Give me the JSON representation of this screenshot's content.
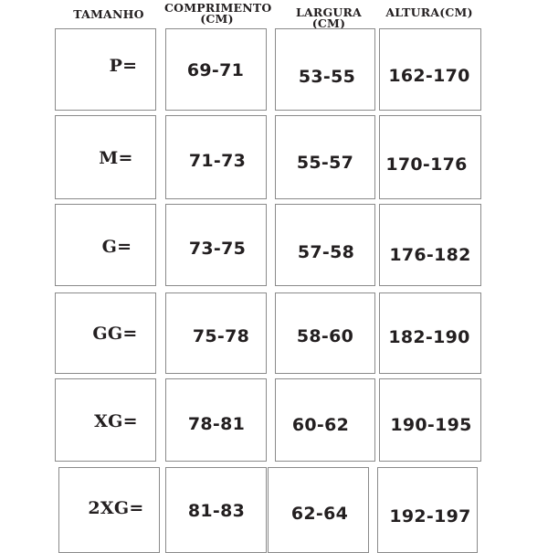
{
  "headers": [
    "TAMANHO",
    "COMPRIMENTO (CM)",
    "LARGURA (CM)",
    "ALTURA(CM)"
  ],
  "rows": [
    {
      "size": "P=",
      "comprimento": "69-71",
      "largura": "53-55",
      "altura": "162-170"
    },
    {
      "size": "M=",
      "comprimento": "71-73",
      "largura": "55-57",
      "altura": "170-176"
    },
    {
      "size": "G=",
      "comprimento": "73-75",
      "largura": "57-58",
      "altura": "176-182"
    },
    {
      "size": "GG=",
      "comprimento": "75-78",
      "largura": "58-60",
      "altura": "182-190"
    },
    {
      "size": "XG=",
      "comprimento": "78-81",
      "largura": "60-62",
      "altura": "190-195"
    },
    {
      "size": "2XG=",
      "comprimento": "81-83",
      "largura": "62-64",
      "altura": "192-197"
    }
  ]
}
